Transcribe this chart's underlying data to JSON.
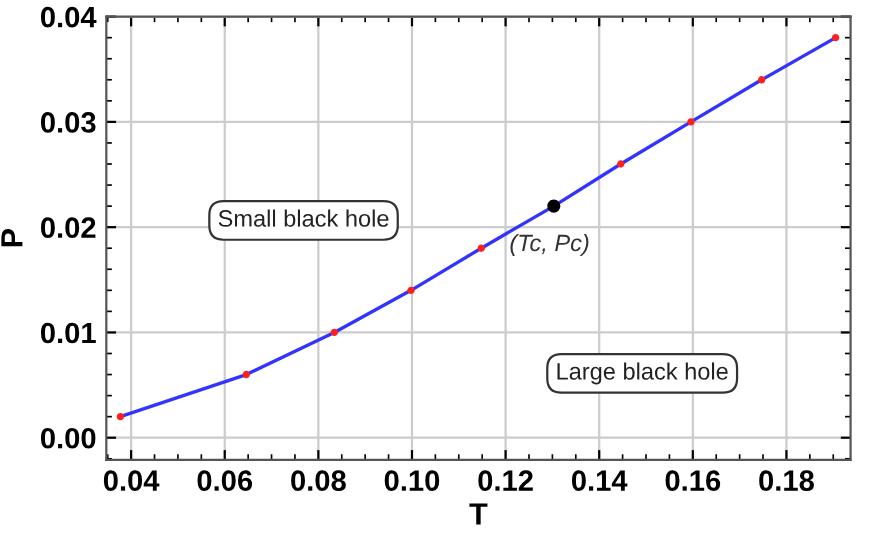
{
  "chart_data": {
    "type": "line",
    "xlabel": "T",
    "ylabel": "P",
    "xlim": [
      0.0347,
      0.1937
    ],
    "ylim": [
      -0.0021,
      0.04
    ],
    "xticks": [
      {
        "value": 0.04,
        "label": "0.04"
      },
      {
        "value": 0.06,
        "label": "0.06"
      },
      {
        "value": 0.08,
        "label": "0.08"
      },
      {
        "value": 0.1,
        "label": "0.10"
      },
      {
        "value": 0.12,
        "label": "0.12"
      },
      {
        "value": 0.14,
        "label": "0.14"
      },
      {
        "value": 0.16,
        "label": "0.16"
      },
      {
        "value": 0.18,
        "label": "0.18"
      }
    ],
    "yticks": [
      {
        "value": 0,
        "label": "0.00"
      },
      {
        "value": 0.01,
        "label": "0.01"
      },
      {
        "value": 0.02,
        "label": "0.02"
      },
      {
        "value": 0.03,
        "label": "0.03"
      },
      {
        "value": 0.04,
        "label": "0.04"
      }
    ],
    "grid": true,
    "series": [
      {
        "color": "#3333ff",
        "marker": "none",
        "x": [
          0.0377,
          0.0646,
          0.0834,
          0.0998,
          0.1148,
          0.1303,
          0.1446,
          0.1596,
          0.1747,
          0.1905
        ],
        "values": [
          0.002,
          0.006,
          0.01,
          0.014,
          0.018,
          0.022,
          0.026,
          0.03,
          0.034,
          0.038
        ]
      },
      {
        "type": "scatter",
        "color": "#ff2020",
        "marker": "circle",
        "x": [
          0.0377,
          0.0646,
          0.0834,
          0.0998,
          0.1148,
          0.1446,
          0.1596,
          0.1747,
          0.1905
        ],
        "values": [
          0.002,
          0.006,
          0.01,
          0.014,
          0.018,
          0.026,
          0.03,
          0.034,
          0.038
        ]
      },
      {
        "type": "scatter",
        "color": "#000000",
        "marker": "circle",
        "x": [
          0.1303
        ],
        "values": [
          0.022
        ]
      }
    ],
    "annotations": [
      "Small black hole",
      "Large black hole",
      {
        "text": "(Tc, Pc)",
        "x": 0.1303,
        "y": 0.022
      }
    ]
  }
}
